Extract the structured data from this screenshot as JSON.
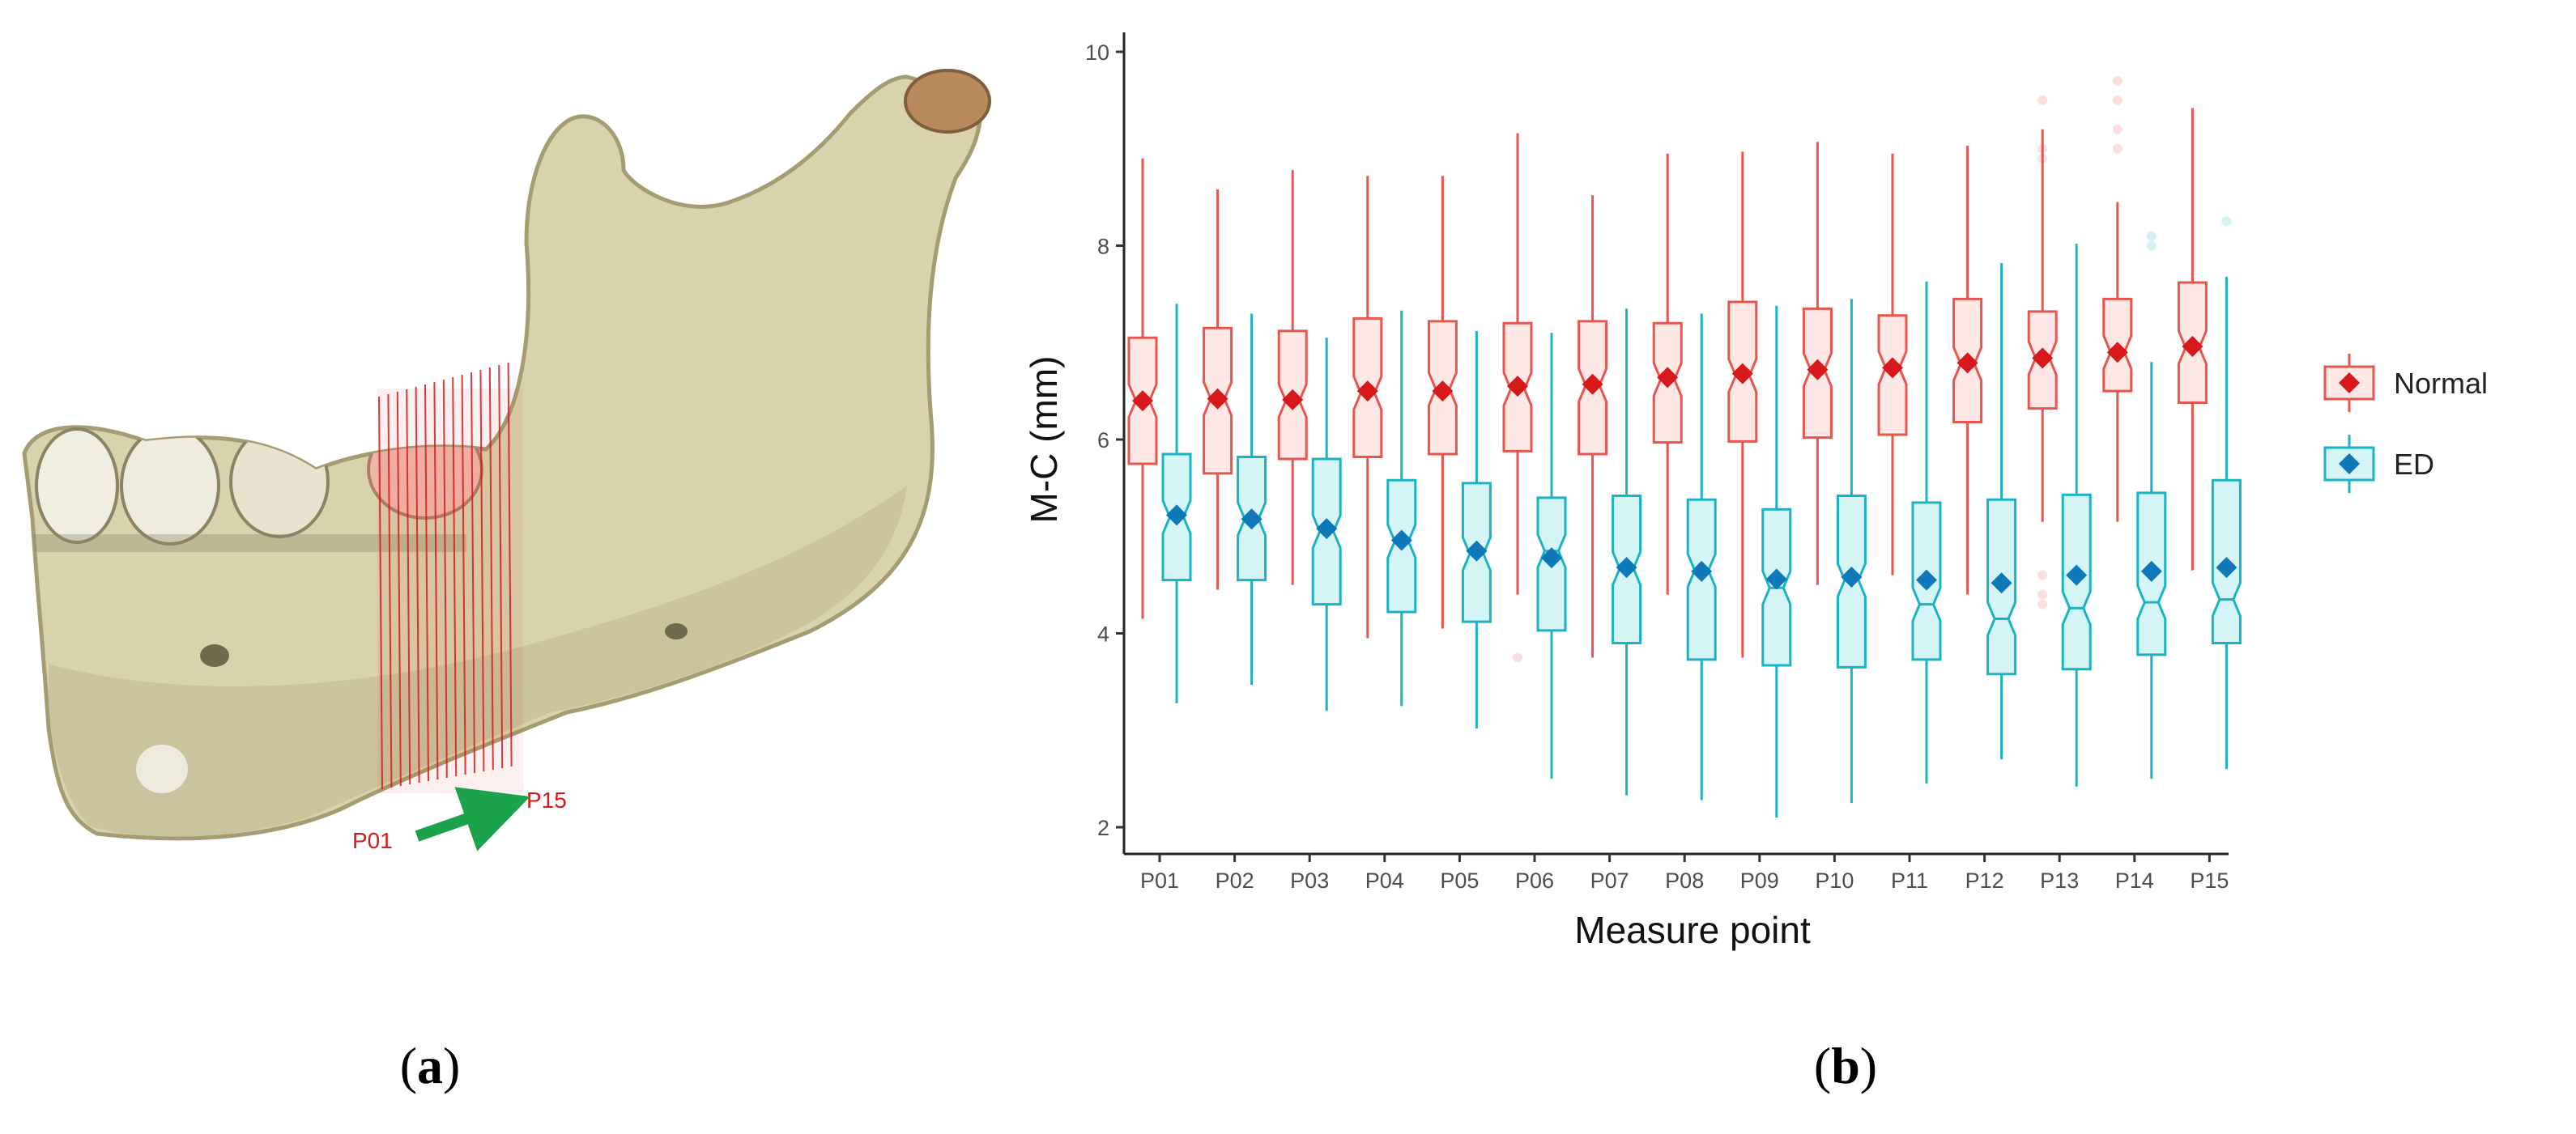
{
  "panels": {
    "a": {
      "label_open": "(",
      "label_letter": "a",
      "label_close": ")"
    },
    "b": {
      "label_open": "(",
      "label_letter": "b",
      "label_close": ")"
    }
  },
  "mandible": {
    "start_label": "P01",
    "end_label": "P15",
    "label_color": "#d7191c",
    "arrow_color": "#1aa34a",
    "bone_color": "#d9d3ad"
  },
  "chart_data": {
    "type": "boxplot",
    "xlabel": "Measure point",
    "ylabel": "M-C (mm)",
    "ylim": [
      2,
      10
    ],
    "yticks": [
      2,
      4,
      6,
      8,
      10
    ],
    "grid": false,
    "legend_position": "right",
    "categories": [
      "P01",
      "P02",
      "P03",
      "P04",
      "P05",
      "P06",
      "P07",
      "P08",
      "P09",
      "P10",
      "P11",
      "P12",
      "P13",
      "P14",
      "P15"
    ],
    "series": [
      {
        "name": "Normal",
        "color": "#e8554e",
        "fill": "#fde8e6",
        "marker_color": "#d7191c",
        "mean": [
          6.4,
          6.42,
          6.41,
          6.5,
          6.5,
          6.55,
          6.57,
          6.64,
          6.68,
          6.72,
          6.74,
          6.79,
          6.84,
          6.9,
          6.96
        ],
        "q1": [
          5.75,
          5.65,
          5.8,
          5.82,
          5.85,
          5.88,
          5.85,
          5.97,
          5.98,
          6.02,
          6.05,
          6.18,
          6.32,
          6.5,
          6.38
        ],
        "median": [
          6.4,
          6.42,
          6.4,
          6.48,
          6.52,
          6.52,
          6.56,
          6.62,
          6.66,
          6.72,
          6.74,
          6.78,
          6.84,
          6.9,
          6.95
        ],
        "q3": [
          7.05,
          7.15,
          7.12,
          7.25,
          7.22,
          7.2,
          7.22,
          7.2,
          7.42,
          7.35,
          7.28,
          7.45,
          7.32,
          7.45,
          7.62
        ],
        "min": [
          4.15,
          4.45,
          4.5,
          3.95,
          4.05,
          4.4,
          3.75,
          4.4,
          3.75,
          4.5,
          4.6,
          4.4,
          5.15,
          5.15,
          4.65
        ],
        "max": [
          8.9,
          8.58,
          8.78,
          8.72,
          8.72,
          9.16,
          8.52,
          8.95,
          8.97,
          9.07,
          8.95,
          9.03,
          9.2,
          8.45,
          9.42
        ],
        "outliers": [
          [],
          [],
          [],
          [],
          [],
          [
            3.75
          ],
          [],
          [],
          [],
          [],
          [],
          [],
          [
            9.5,
            9.0,
            8.9,
            4.6,
            4.4,
            4.3
          ],
          [
            9.7,
            9.5,
            9.2,
            9.0
          ],
          []
        ]
      },
      {
        "name": "ED",
        "color": "#18b4c4",
        "fill": "#d4f4f6",
        "marker_color": "#0e78b8",
        "mean": [
          5.22,
          5.18,
          5.08,
          4.96,
          4.85,
          4.78,
          4.68,
          4.64,
          4.56,
          4.58,
          4.55,
          4.52,
          4.6,
          4.64,
          4.68
        ],
        "q1": [
          4.55,
          4.55,
          4.3,
          4.22,
          4.12,
          4.03,
          3.9,
          3.73,
          3.67,
          3.65,
          3.73,
          3.58,
          3.63,
          3.78,
          3.9
        ],
        "median": [
          5.2,
          5.18,
          5.05,
          4.95,
          4.82,
          4.85,
          4.67,
          4.65,
          4.47,
          4.55,
          4.3,
          4.15,
          4.26,
          4.32,
          4.35
        ],
        "q3": [
          5.85,
          5.82,
          5.8,
          5.58,
          5.55,
          5.4,
          5.42,
          5.38,
          5.28,
          5.42,
          5.35,
          5.38,
          5.43,
          5.45,
          5.58
        ],
        "min": [
          3.28,
          3.47,
          3.2,
          3.25,
          3.02,
          2.5,
          2.33,
          2.28,
          2.1,
          2.25,
          2.45,
          2.7,
          2.42,
          2.5,
          2.6
        ],
        "max": [
          7.4,
          7.3,
          7.05,
          7.33,
          7.12,
          7.1,
          7.35,
          7.3,
          7.38,
          7.45,
          7.63,
          7.82,
          8.02,
          6.8,
          7.68
        ],
        "outliers": [
          [],
          [],
          [],
          [],
          [],
          [],
          [],
          [],
          [],
          [],
          [],
          [],
          [],
          [
            8.1,
            8.0
          ],
          [
            8.25
          ]
        ]
      }
    ]
  }
}
